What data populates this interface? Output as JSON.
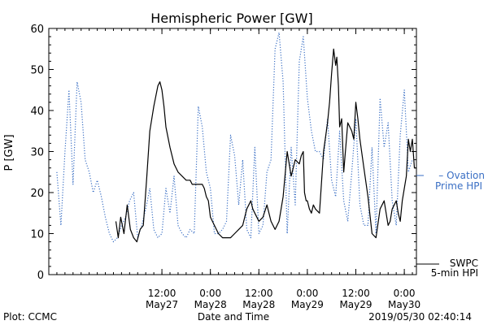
{
  "chart_data": {
    "type": "line",
    "title": "Hemispheric Power [GW]",
    "ylabel": "P [GW]",
    "xlabel": "Date and Time",
    "ylim": [
      0,
      60
    ],
    "yticks": [
      0,
      10,
      20,
      30,
      40,
      50,
      60
    ],
    "x_range_hours": [
      -16,
      75
    ],
    "xticks": [
      {
        "hour": 12,
        "time": "12:00",
        "date": "May27"
      },
      {
        "hour": 24,
        "time": "0:00",
        "date": "May28"
      },
      {
        "hour": 36,
        "time": "12:00",
        "date": "May28"
      },
      {
        "hour": 48,
        "time": "0:00",
        "date": "May29"
      },
      {
        "hour": 60,
        "time": "12:00",
        "date": "May29"
      },
      {
        "hour": 72,
        "time": "0:00",
        "date": "May30"
      }
    ],
    "x_note": "x values are hours after 2019/05/27 00:00",
    "series": [
      {
        "name": "SWPC 5-min HPI",
        "legend": [
          "SWPC",
          "5-min HPI"
        ],
        "color": "#000000",
        "style": "solid",
        "x": [
          0.6,
          1.2,
          1.8,
          2.6,
          3.4,
          4.2,
          5.0,
          5.8,
          6.6,
          7.4,
          8.2,
          9.0,
          10.0,
          11.0,
          11.5,
          12.0,
          12.5,
          13.0,
          14.0,
          15.0,
          16.0,
          17.0,
          18.0,
          19.0,
          19.5,
          20.0,
          21.0,
          22.0,
          22.5,
          23.0,
          23.5,
          24.0,
          25.0,
          26.0,
          27.0,
          28.0,
          29.0,
          30.0,
          31.0,
          32.0,
          32.5,
          33.0,
          33.5,
          34.0,
          34.5,
          35.0,
          35.5,
          36.0,
          37.0,
          38.0,
          38.5,
          39.0,
          40.0,
          41.0,
          42.0,
          43.0,
          44.0,
          45.0,
          46.0,
          46.5,
          47.0,
          47.3,
          47.7,
          48.0,
          48.5,
          49.0,
          49.5,
          50.0,
          51.0,
          52.0,
          53.0,
          53.5,
          54.0,
          54.5,
          55.0,
          55.3,
          55.7,
          56.0,
          56.5,
          57.0,
          58.0,
          59.0,
          59.5,
          60.0,
          60.5,
          61.0,
          62.0,
          63.0,
          64.0,
          65.0,
          66.0,
          66.5,
          67.0,
          68.0,
          68.5,
          69.0,
          69.5,
          70.0,
          70.5,
          71.0,
          71.5,
          72.0,
          72.5,
          73.0,
          73.5,
          74.0,
          74.5,
          75.0
        ],
        "y": [
          13,
          9,
          14,
          10,
          17,
          11,
          9,
          8,
          11,
          12,
          23,
          35,
          41,
          46,
          47,
          45,
          41,
          36,
          31,
          27,
          25,
          24,
          23,
          23,
          22,
          22,
          22,
          22,
          21,
          19,
          18,
          14,
          12,
          10,
          9,
          9,
          9,
          10,
          11,
          12,
          14,
          16,
          17,
          18,
          16,
          15,
          14,
          13,
          14,
          17,
          15,
          13,
          11,
          13,
          19,
          30,
          24,
          28,
          27,
          29,
          30,
          20,
          18,
          18,
          16,
          15,
          17,
          16,
          15,
          30,
          37,
          42,
          49,
          55,
          51,
          53,
          46,
          36,
          38,
          25,
          37,
          35,
          33,
          42,
          38,
          33,
          26,
          19,
          10,
          9,
          16,
          17,
          18,
          12,
          13,
          16,
          17,
          18,
          15,
          13,
          18,
          21,
          24,
          33,
          30,
          33,
          26,
          26
        ]
      },
      {
        "name": "Ovation Prime HPI",
        "legend": [
          "– Ovation",
          "Prime HPI"
        ],
        "color": "#3a6fc4",
        "style": "dotted",
        "x": [
          -14.0,
          -13.0,
          -12.0,
          -11.0,
          -10.0,
          -9.0,
          -8.0,
          -7.0,
          -6.0,
          -5.0,
          -4.0,
          -3.0,
          -2.0,
          -1.0,
          0.0,
          1.0,
          2.0,
          3.0,
          4.0,
          5.0,
          6.0,
          7.0,
          8.0,
          9.0,
          10.0,
          11.0,
          12.0,
          13.0,
          14.0,
          15.0,
          16.0,
          17.0,
          18.0,
          19.0,
          20.0,
          21.0,
          22.0,
          23.0,
          24.0,
          25.0,
          26.0,
          27.0,
          28.0,
          29.0,
          30.0,
          31.0,
          32.0,
          33.0,
          34.0,
          35.0,
          36.0,
          37.0,
          38.0,
          39.0,
          40.0,
          41.0,
          42.0,
          43.0,
          44.0,
          45.0,
          46.0,
          47.0,
          48.0,
          49.0,
          50.0,
          51.0,
          52.0,
          53.0,
          54.0,
          55.0,
          56.0,
          57.0,
          58.0,
          59.0,
          60.0,
          61.0,
          62.0,
          63.0,
          64.0,
          65.0,
          66.0,
          67.0,
          68.0,
          69.0,
          70.0,
          71.0,
          72.0,
          73.0,
          74.0
        ],
        "y": [
          25,
          12,
          30,
          45,
          22,
          47,
          42,
          28,
          25,
          20,
          23,
          19,
          14,
          10,
          8,
          9,
          12,
          14,
          18,
          20,
          9,
          12,
          16,
          21,
          11,
          9,
          10,
          21,
          15,
          24,
          12,
          10,
          9,
          11,
          10,
          41,
          36,
          25,
          21,
          10,
          10,
          11,
          13,
          34,
          29,
          17,
          28,
          11,
          9,
          31,
          10,
          12,
          25,
          28,
          55,
          59,
          47,
          10,
          31,
          17,
          52,
          58,
          43,
          35,
          30,
          30,
          28,
          38,
          23,
          19,
          35,
          18,
          13,
          25,
          38,
          17,
          12,
          12,
          31,
          10,
          43,
          31,
          37,
          18,
          12,
          34,
          45,
          25,
          28
        ]
      }
    ],
    "annotations": {
      "plot_source": "Plot: CCMC",
      "timestamp": "2019/05/30 02:40:14"
    }
  }
}
